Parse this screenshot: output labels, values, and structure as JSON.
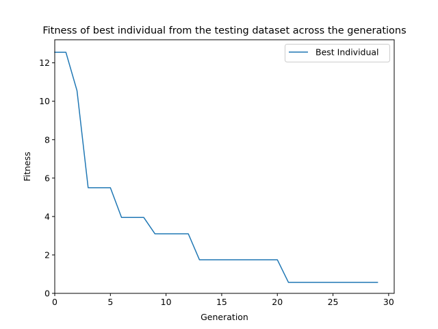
{
  "chart_data": {
    "type": "line",
    "title": "Fitness of best individual from the testing dataset across the generations",
    "xlabel": "Generation",
    "ylabel": "Fitness",
    "xlim": [
      0,
      30.5
    ],
    "ylim": [
      0,
      13.2
    ],
    "xticks": [
      0,
      5,
      10,
      15,
      20,
      25,
      30
    ],
    "yticks": [
      0,
      2,
      4,
      6,
      8,
      10,
      12
    ],
    "grid": false,
    "legend_position": "top-right",
    "series": [
      {
        "name": "Best Individual",
        "color": "#1f77b4",
        "x": [
          0,
          1,
          2,
          3,
          4,
          5,
          6,
          7,
          8,
          9,
          10,
          11,
          12,
          13,
          14,
          15,
          16,
          17,
          18,
          19,
          20,
          21,
          22,
          23,
          24,
          25,
          26,
          27,
          28,
          29
        ],
        "y": [
          12.55,
          12.55,
          10.55,
          5.5,
          5.5,
          5.5,
          3.95,
          3.95,
          3.95,
          3.1,
          3.1,
          3.1,
          3.1,
          1.75,
          1.75,
          1.75,
          1.75,
          1.75,
          1.75,
          1.75,
          1.75,
          0.57,
          0.57,
          0.57,
          0.57,
          0.57,
          0.57,
          0.57,
          0.57,
          0.57
        ]
      }
    ]
  }
}
